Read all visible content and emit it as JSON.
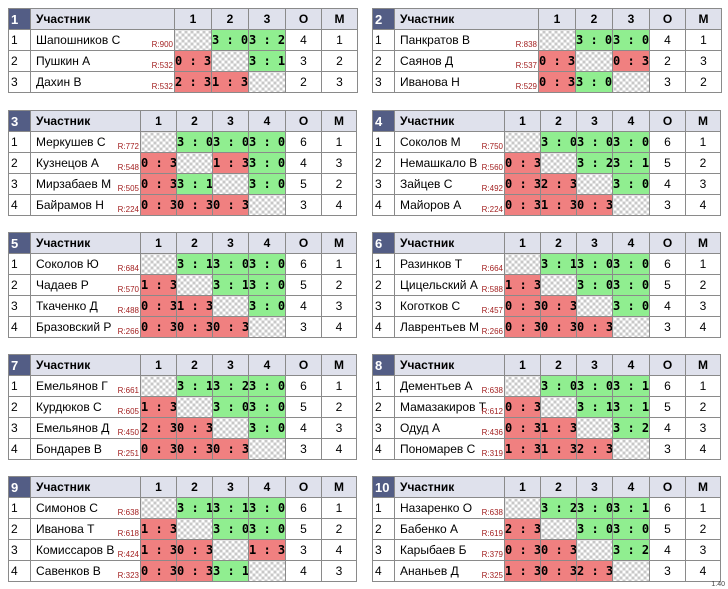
{
  "participant_header": "Участник",
  "points_header": "О",
  "place_header": "М",
  "version": "1.40",
  "groups": [
    {
      "number": "1",
      "columns": [
        "1",
        "2",
        "3"
      ],
      "rows": [
        {
          "n": "1",
          "name": "Шапошников С",
          "rating": "R:900",
          "cells": [
            null,
            "3 : 0",
            "3 : 2"
          ],
          "points": "4",
          "place": "1"
        },
        {
          "n": "2",
          "name": "Пушкин А",
          "rating": "R:532",
          "cells": [
            "0 : 3",
            null,
            "3 : 1"
          ],
          "points": "3",
          "place": "2"
        },
        {
          "n": "3",
          "name": "Дахин В",
          "rating": "R:532",
          "cells": [
            "2 : 3",
            "1 : 3",
            null
          ],
          "points": "2",
          "place": "3"
        }
      ]
    },
    {
      "number": "2",
      "columns": [
        "1",
        "2",
        "3"
      ],
      "rows": [
        {
          "n": "1",
          "name": "Панкратов В",
          "rating": "R:838",
          "cells": [
            null,
            "3 : 0",
            "3 : 0"
          ],
          "points": "4",
          "place": "1"
        },
        {
          "n": "2",
          "name": "Саянов Д",
          "rating": "R:537",
          "cells": [
            "0 : 3",
            null,
            "0 : 3"
          ],
          "points": "2",
          "place": "3"
        },
        {
          "n": "3",
          "name": "Иванова Н",
          "rating": "R:529",
          "cells": [
            "0 : 3",
            "3 : 0",
            null
          ],
          "points": "3",
          "place": "2"
        }
      ]
    },
    {
      "number": "3",
      "columns": [
        "1",
        "2",
        "3",
        "4"
      ],
      "rows": [
        {
          "n": "1",
          "name": "Меркушев С",
          "rating": "R:772",
          "cells": [
            null,
            "3 : 0",
            "3 : 0",
            "3 : 0"
          ],
          "points": "6",
          "place": "1"
        },
        {
          "n": "2",
          "name": "Кузнецов А",
          "rating": "R:548",
          "cells": [
            "0 : 3",
            null,
            "1 : 3",
            "3 : 0"
          ],
          "points": "4",
          "place": "3"
        },
        {
          "n": "3",
          "name": "Мирзабаев М",
          "rating": "R:505",
          "cells": [
            "0 : 3",
            "3 : 1",
            null,
            "3 : 0"
          ],
          "points": "5",
          "place": "2"
        },
        {
          "n": "4",
          "name": "Байрамов Н",
          "rating": "R:224",
          "cells": [
            "0 : 3",
            "0 : 3",
            "0 : 3",
            null
          ],
          "points": "3",
          "place": "4"
        }
      ]
    },
    {
      "number": "4",
      "columns": [
        "1",
        "2",
        "3",
        "4"
      ],
      "rows": [
        {
          "n": "1",
          "name": "Соколов М",
          "rating": "R:750",
          "cells": [
            null,
            "3 : 0",
            "3 : 0",
            "3 : 0"
          ],
          "points": "6",
          "place": "1"
        },
        {
          "n": "2",
          "name": "Немашкало В",
          "rating": "R:560",
          "cells": [
            "0 : 3",
            null,
            "3 : 2",
            "3 : 1"
          ],
          "points": "5",
          "place": "2"
        },
        {
          "n": "3",
          "name": "Зайцев С",
          "rating": "R:492",
          "cells": [
            "0 : 3",
            "2 : 3",
            null,
            "3 : 0"
          ],
          "points": "4",
          "place": "3"
        },
        {
          "n": "4",
          "name": "Майоров А",
          "rating": "R:224",
          "cells": [
            "0 : 3",
            "1 : 3",
            "0 : 3",
            null
          ],
          "points": "3",
          "place": "4"
        }
      ]
    },
    {
      "number": "5",
      "columns": [
        "1",
        "2",
        "3",
        "4"
      ],
      "rows": [
        {
          "n": "1",
          "name": "Соколов Ю",
          "rating": "R:684",
          "cells": [
            null,
            "3 : 1",
            "3 : 0",
            "3 : 0"
          ],
          "points": "6",
          "place": "1"
        },
        {
          "n": "2",
          "name": "Чадаев Р",
          "rating": "R:570",
          "cells": [
            "1 : 3",
            null,
            "3 : 1",
            "3 : 0"
          ],
          "points": "5",
          "place": "2"
        },
        {
          "n": "3",
          "name": "Ткаченко Д",
          "rating": "R:488",
          "cells": [
            "0 : 3",
            "1 : 3",
            null,
            "3 : 0"
          ],
          "points": "4",
          "place": "3"
        },
        {
          "n": "4",
          "name": "Бразовский Р",
          "rating": "R:266",
          "cells": [
            "0 : 3",
            "0 : 3",
            "0 : 3",
            null
          ],
          "points": "3",
          "place": "4"
        }
      ]
    },
    {
      "number": "6",
      "columns": [
        "1",
        "2",
        "3",
        "4"
      ],
      "rows": [
        {
          "n": "1",
          "name": "Разинков Т",
          "rating": "R:664",
          "cells": [
            null,
            "3 : 1",
            "3 : 0",
            "3 : 0"
          ],
          "points": "6",
          "place": "1"
        },
        {
          "n": "2",
          "name": "Цицельский А",
          "rating": "R:588",
          "cells": [
            "1 : 3",
            null,
            "3 : 0",
            "3 : 0"
          ],
          "points": "5",
          "place": "2"
        },
        {
          "n": "3",
          "name": "Коготков С",
          "rating": "R:457",
          "cells": [
            "0 : 3",
            "0 : 3",
            null,
            "3 : 0"
          ],
          "points": "4",
          "place": "3"
        },
        {
          "n": "4",
          "name": "Лаврентьев М",
          "rating": "R:266",
          "cells": [
            "0 : 3",
            "0 : 3",
            "0 : 3",
            null
          ],
          "points": "3",
          "place": "4"
        }
      ]
    },
    {
      "number": "7",
      "columns": [
        "1",
        "2",
        "3",
        "4"
      ],
      "rows": [
        {
          "n": "1",
          "name": "Емельянов Г",
          "rating": "R:661",
          "cells": [
            null,
            "3 : 1",
            "3 : 2",
            "3 : 0"
          ],
          "points": "6",
          "place": "1"
        },
        {
          "n": "2",
          "name": "Курдюков С",
          "rating": "R:605",
          "cells": [
            "1 : 3",
            null,
            "3 : 0",
            "3 : 0"
          ],
          "points": "5",
          "place": "2"
        },
        {
          "n": "3",
          "name": "Емельянов Д",
          "rating": "R:450",
          "cells": [
            "2 : 3",
            "0 : 3",
            null,
            "3 : 0"
          ],
          "points": "4",
          "place": "3"
        },
        {
          "n": "4",
          "name": "Бондарев В",
          "rating": "R:251",
          "cells": [
            "0 : 3",
            "0 : 3",
            "0 : 3",
            null
          ],
          "points": "3",
          "place": "4"
        }
      ]
    },
    {
      "number": "8",
      "columns": [
        "1",
        "2",
        "3",
        "4"
      ],
      "rows": [
        {
          "n": "1",
          "name": "Дементьев А",
          "rating": "R:638",
          "cells": [
            null,
            "3 : 0",
            "3 : 0",
            "3 : 1"
          ],
          "points": "6",
          "place": "1"
        },
        {
          "n": "2",
          "name": "Мамазакиров Т",
          "rating": "R:612",
          "cells": [
            "0 : 3",
            null,
            "3 : 1",
            "3 : 1"
          ],
          "points": "5",
          "place": "2"
        },
        {
          "n": "3",
          "name": "Одуд А",
          "rating": "R:436",
          "cells": [
            "0 : 3",
            "1 : 3",
            null,
            "3 : 2"
          ],
          "points": "4",
          "place": "3"
        },
        {
          "n": "4",
          "name": "Пономарев С",
          "rating": "R:319",
          "cells": [
            "1 : 3",
            "1 : 3",
            "2 : 3",
            null
          ],
          "points": "3",
          "place": "4"
        }
      ]
    },
    {
      "number": "9",
      "columns": [
        "1",
        "2",
        "3",
        "4"
      ],
      "rows": [
        {
          "n": "1",
          "name": "Симонов С",
          "rating": "R:638",
          "cells": [
            null,
            "3 : 1",
            "3 : 1",
            "3 : 0"
          ],
          "points": "6",
          "place": "1"
        },
        {
          "n": "2",
          "name": "Иванова Т",
          "rating": "R:618",
          "cells": [
            "1 : 3",
            null,
            "3 : 0",
            "3 : 0"
          ],
          "points": "5",
          "place": "2"
        },
        {
          "n": "3",
          "name": "Комиссаров В",
          "rating": "R:424",
          "cells": [
            "1 : 3",
            "0 : 3",
            null,
            "1 : 3"
          ],
          "points": "3",
          "place": "4"
        },
        {
          "n": "4",
          "name": "Савенков В",
          "rating": "R:323",
          "cells": [
            "0 : 3",
            "0 : 3",
            "3 : 1",
            null
          ],
          "points": "4",
          "place": "3"
        }
      ]
    },
    {
      "number": "10",
      "columns": [
        "1",
        "2",
        "3",
        "4"
      ],
      "rows": [
        {
          "n": "1",
          "name": "Назаренко О",
          "rating": "R:638",
          "cells": [
            null,
            "3 : 2",
            "3 : 0",
            "3 : 1"
          ],
          "points": "6",
          "place": "1"
        },
        {
          "n": "2",
          "name": "Бабенко А",
          "rating": "R:619",
          "cells": [
            "2 : 3",
            null,
            "3 : 0",
            "3 : 0"
          ],
          "points": "5",
          "place": "2"
        },
        {
          "n": "3",
          "name": "Карыбаев Б",
          "rating": "R:379",
          "cells": [
            "0 : 3",
            "0 : 3",
            null,
            "3 : 2"
          ],
          "points": "4",
          "place": "3"
        },
        {
          "n": "4",
          "name": "Ананьев Д",
          "rating": "R:325",
          "cells": [
            "1 : 3",
            "0 : 3",
            "2 : 3",
            null
          ],
          "points": "3",
          "place": "4"
        }
      ]
    }
  ]
}
